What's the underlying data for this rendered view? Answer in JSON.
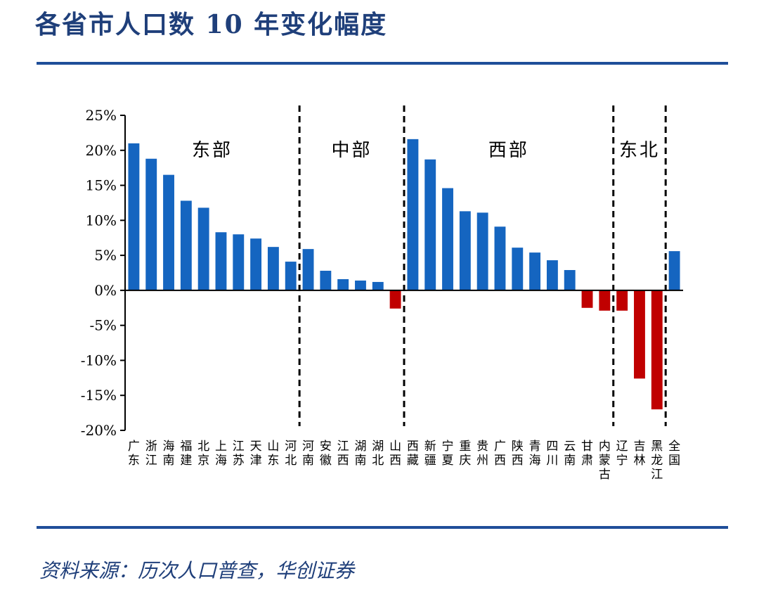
{
  "title": "各省市人口数 10 年变化幅度",
  "source": "资料来源：历次人口普查，华创证券",
  "colors": {
    "positive": "#1565c0",
    "negative": "#c00000",
    "rule": "#1f4e99",
    "text": "#1f3f7a"
  },
  "chart_data": {
    "type": "bar",
    "title": "各省市人口数 10 年变化幅度",
    "xlabel": "",
    "ylabel": "",
    "ylim": [
      -20,
      25
    ],
    "yticks": [
      25,
      20,
      15,
      10,
      5,
      0,
      -5,
      -10,
      -15,
      -20
    ],
    "ytick_labels": [
      "25%",
      "20%",
      "15%",
      "10%",
      "5%",
      "0%",
      "-5%",
      "-10%",
      "-15%",
      "-20%"
    ],
    "grid": false,
    "categories": [
      "广东",
      "浙江",
      "海南",
      "福建",
      "北京",
      "上海",
      "江苏",
      "天津",
      "山东",
      "河北",
      "河南",
      "安徽",
      "江西",
      "湖南",
      "湖北",
      "山西",
      "西藏",
      "新疆",
      "宁夏",
      "重庆",
      "贵州",
      "广西",
      "陕西",
      "青海",
      "四川",
      "云南",
      "甘肃",
      "内蒙古",
      "辽宁",
      "吉林",
      "黑龙江",
      "全国"
    ],
    "values": [
      21.0,
      18.8,
      16.5,
      12.8,
      11.8,
      8.3,
      8.0,
      7.4,
      6.2,
      4.1,
      5.9,
      2.8,
      1.6,
      1.4,
      1.2,
      -2.6,
      21.6,
      18.7,
      14.6,
      11.3,
      11.1,
      9.1,
      6.1,
      5.4,
      4.3,
      2.9,
      -2.5,
      -2.9,
      -2.9,
      -12.6,
      -17.0,
      5.6
    ],
    "regions": [
      {
        "name": "东部",
        "start": 0,
        "end": 9
      },
      {
        "name": "中部",
        "start": 10,
        "end": 15
      },
      {
        "name": "西部",
        "start": 16,
        "end": 27
      },
      {
        "name": "东北",
        "start": 28,
        "end": 30
      }
    ]
  }
}
